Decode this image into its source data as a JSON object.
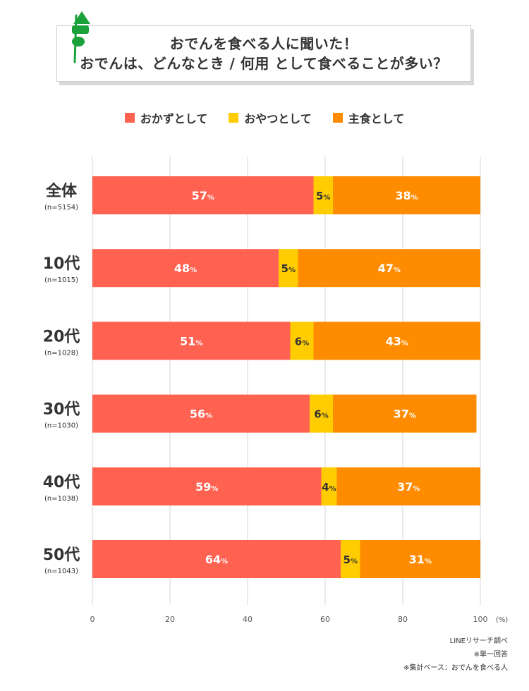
{
  "title": {
    "line1": "おでんを食べる人に聞いた！",
    "line2": "おでんは、どんなとき / 何用 として食べることが多い？"
  },
  "colors": {
    "okazu": "#ff6251",
    "oyatsu": "#ffcc00",
    "shushoku": "#ff8c00",
    "grid": "#d6d6d6",
    "icon_green": "#1aa13a"
  },
  "chart_data": {
    "type": "bar",
    "orientation": "horizontal",
    "stacked": true,
    "categories": [
      "全体",
      "10代",
      "20代",
      "30代",
      "40代",
      "50代"
    ],
    "sample_sizes": [
      "(n=5154)",
      "(n=1015)",
      "(n=1028)",
      "(n=1030)",
      "(n=1038)",
      "(n=1043)"
    ],
    "series": [
      {
        "name": "おかずとして",
        "values": [
          57,
          48,
          51,
          56,
          59,
          64
        ]
      },
      {
        "name": "おやつとして",
        "values": [
          5,
          5,
          6,
          6,
          4,
          5
        ]
      },
      {
        "name": "主食として",
        "values": [
          38,
          47,
          43,
          37,
          37,
          31
        ]
      }
    ],
    "value_suffix": "%",
    "xlim": [
      0,
      100
    ],
    "xticks": [
      "0",
      "20",
      "40",
      "60",
      "80",
      "100"
    ],
    "xunit": "(%)",
    "grid": true,
    "legend_position": "top"
  },
  "notes": [
    "LINEリサーチ調べ",
    "※単一回答",
    "※集計ベース：おでんを食べる人"
  ]
}
